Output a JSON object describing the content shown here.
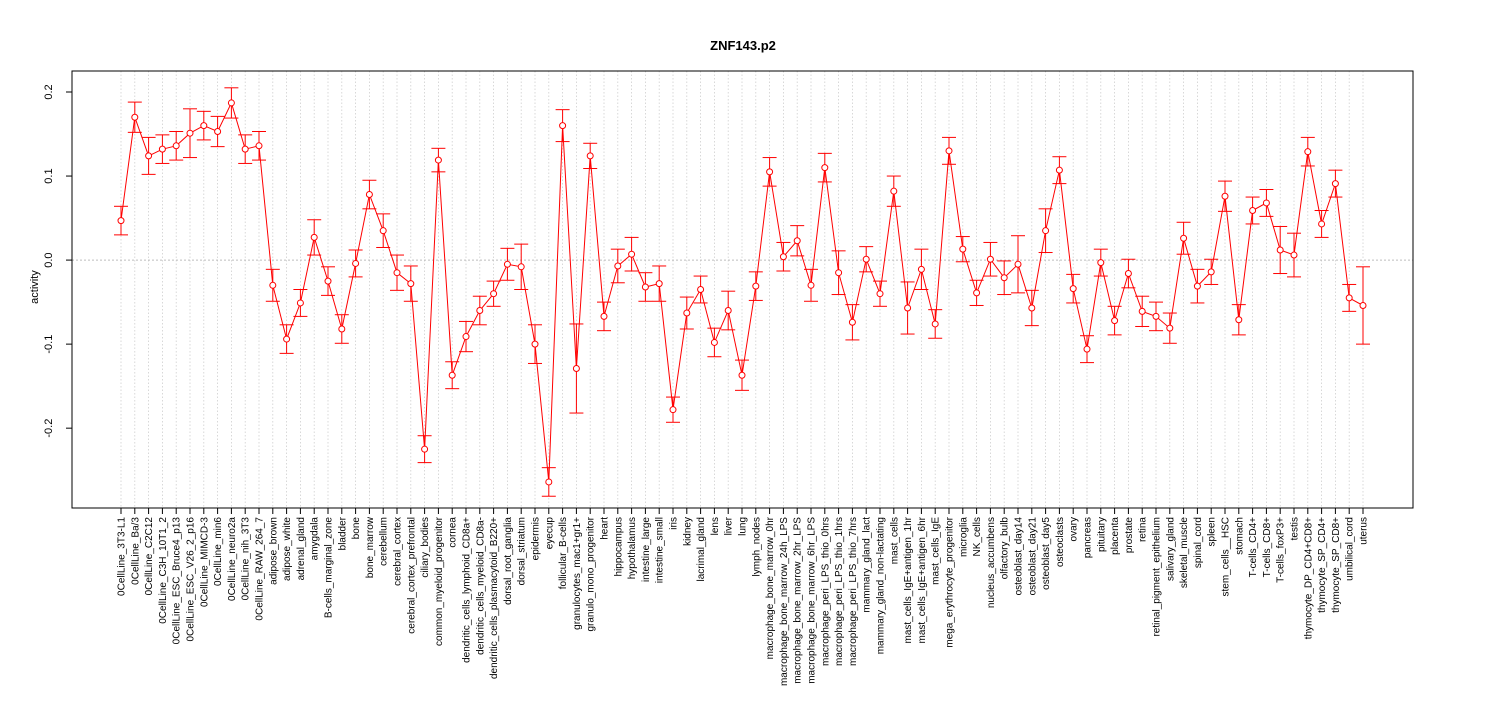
{
  "chart_data": {
    "type": "line",
    "title": "ZNF143.p2",
    "xlabel": "",
    "ylabel": "activity",
    "ylim": [
      -0.295,
      0.225
    ],
    "yticks": [
      -0.2,
      -0.1,
      0.0,
      0.1,
      0.2
    ],
    "ytick_labels": [
      "-0.2",
      "-0.1",
      "0.0",
      "0.1",
      "0.2"
    ],
    "grid": true,
    "reference_line": 0.0,
    "series": [
      {
        "name": "activity",
        "color": "#ff0000",
        "points": [
          {
            "label": "0CellLine_3T3-L1",
            "value": 0.047,
            "err": 0.017
          },
          {
            "label": "0CellLine_Ba/3",
            "value": 0.17,
            "err": 0.018
          },
          {
            "label": "0CellLine_C2C12",
            "value": 0.124,
            "err": 0.022
          },
          {
            "label": "0CellLine_C3H_10T1_2",
            "value": 0.132,
            "err": 0.017
          },
          {
            "label": "0CellLine_ESC_Bruce4_p13",
            "value": 0.136,
            "err": 0.017
          },
          {
            "label": "0CellLine_ESC_V26_2_p16",
            "value": 0.151,
            "err": 0.029
          },
          {
            "label": "0CellLine_MIMCD-3",
            "value": 0.16,
            "err": 0.017
          },
          {
            "label": "0CellLine_min6",
            "value": 0.153,
            "err": 0.018
          },
          {
            "label": "0CellLine_neuro2a",
            "value": 0.187,
            "err": 0.018
          },
          {
            "label": "0CellLine_nih_3T3",
            "value": 0.132,
            "err": 0.017
          },
          {
            "label": "0CellLine_RAW_264_7",
            "value": 0.136,
            "err": 0.017
          },
          {
            "label": "adipose_brown",
            "value": -0.03,
            "err": 0.019
          },
          {
            "label": "adipose_white",
            "value": -0.094,
            "err": 0.017
          },
          {
            "label": "adrenal_gland",
            "value": -0.051,
            "err": 0.016
          },
          {
            "label": "amygdala",
            "value": 0.027,
            "err": 0.021
          },
          {
            "label": "B-cells_marginal_zone",
            "value": -0.025,
            "err": 0.017
          },
          {
            "label": "bladder",
            "value": -0.082,
            "err": 0.017
          },
          {
            "label": "bone",
            "value": -0.004,
            "err": 0.016
          },
          {
            "label": "bone_marrow",
            "value": 0.078,
            "err": 0.017
          },
          {
            "label": "cerebellum",
            "value": 0.035,
            "err": 0.02
          },
          {
            "label": "cerebral_cortex",
            "value": -0.015,
            "err": 0.021
          },
          {
            "label": "cerebral_cortex_prefrontal",
            "value": -0.028,
            "err": 0.021
          },
          {
            "label": "ciliary_bodies",
            "value": -0.225,
            "err": 0.016
          },
          {
            "label": "common_myeloid_progenitor",
            "value": 0.119,
            "err": 0.014
          },
          {
            "label": "cornea",
            "value": -0.137,
            "err": 0.016
          },
          {
            "label": "dendritic_cells_lymphoid_CD8a+",
            "value": -0.091,
            "err": 0.018
          },
          {
            "label": "dendritic_cells_myeloid_CD8a-",
            "value": -0.06,
            "err": 0.017
          },
          {
            "label": "dendritic_cells_plasmacytoid_B220+",
            "value": -0.04,
            "err": 0.015
          },
          {
            "label": "dorsal_root_ganglia",
            "value": -0.005,
            "err": 0.019
          },
          {
            "label": "dorsal_striatum",
            "value": -0.008,
            "err": 0.027
          },
          {
            "label": "epidermis",
            "value": -0.1,
            "err": 0.023
          },
          {
            "label": "eyecup",
            "value": -0.264,
            "err": 0.017
          },
          {
            "label": "follicular_B-cells",
            "value": 0.16,
            "err": 0.019
          },
          {
            "label": "granulocytes_mac1+gr1+",
            "value": -0.129,
            "err": 0.053
          },
          {
            "label": "granulo_mono_progenitor",
            "value": 0.124,
            "err": 0.015
          },
          {
            "label": "heart",
            "value": -0.067,
            "err": 0.017
          },
          {
            "label": "hippocampus",
            "value": -0.007,
            "err": 0.02
          },
          {
            "label": "hypothalamus",
            "value": 0.007,
            "err": 0.02
          },
          {
            "label": "intestine_large",
            "value": -0.032,
            "err": 0.017
          },
          {
            "label": "intestine_small",
            "value": -0.028,
            "err": 0.021
          },
          {
            "label": "iris",
            "value": -0.178,
            "err": 0.015
          },
          {
            "label": "kidney",
            "value": -0.063,
            "err": 0.019
          },
          {
            "label": "lacrimal_gland",
            "value": -0.035,
            "err": 0.016
          },
          {
            "label": "lens",
            "value": -0.098,
            "err": 0.017
          },
          {
            "label": "liver",
            "value": -0.06,
            "err": 0.023
          },
          {
            "label": "lung",
            "value": -0.137,
            "err": 0.018
          },
          {
            "label": "lymph_nodes",
            "value": -0.031,
            "err": 0.017
          },
          {
            "label": "macrophage_bone_marrow_0hr",
            "value": 0.105,
            "err": 0.017
          },
          {
            "label": "macrophage_bone_marrow_24h_LPS",
            "value": 0.004,
            "err": 0.017
          },
          {
            "label": "macrophage_bone_marrow_2hr_LPS",
            "value": 0.023,
            "err": 0.018
          },
          {
            "label": "macrophage_bone_marrow_6hr_LPS",
            "value": -0.03,
            "err": 0.019
          },
          {
            "label": "macrophage_peri_LPS_thio_0hrs",
            "value": 0.11,
            "err": 0.017
          },
          {
            "label": "macrophage_peri_LPS_thio_1hrs",
            "value": -0.015,
            "err": 0.026
          },
          {
            "label": "macrophage_peri_LPS_thio_7hrs",
            "value": -0.074,
            "err": 0.021
          },
          {
            "label": "mammary_gland_lact",
            "value": 0.001,
            "err": 0.015
          },
          {
            "label": "mammary_gland_non-lactating",
            "value": -0.04,
            "err": 0.015
          },
          {
            "label": "mast_cells",
            "value": 0.082,
            "err": 0.018
          },
          {
            "label": "mast_cells_IgE+antigen_1hr",
            "value": -0.057,
            "err": 0.031
          },
          {
            "label": "mast_cells_IgE+antigen_6hr",
            "value": -0.011,
            "err": 0.024
          },
          {
            "label": "mast_cells_IgE",
            "value": -0.076,
            "err": 0.017
          },
          {
            "label": "mega_erythrocyte_progenitor",
            "value": 0.13,
            "err": 0.016
          },
          {
            "label": "microglia",
            "value": 0.013,
            "err": 0.015
          },
          {
            "label": "NK_cells",
            "value": -0.039,
            "err": 0.015
          },
          {
            "label": "nucleus_accumbens",
            "value": 0.001,
            "err": 0.02
          },
          {
            "label": "olfactory_bulb",
            "value": -0.021,
            "err": 0.02
          },
          {
            "label": "osteoblast_day14",
            "value": -0.005,
            "err": 0.034
          },
          {
            "label": "osteoblast_day21",
            "value": -0.057,
            "err": 0.021
          },
          {
            "label": "osteoblast_day5",
            "value": 0.035,
            "err": 0.026
          },
          {
            "label": "osteoclasts",
            "value": 0.107,
            "err": 0.016
          },
          {
            "label": "ovary",
            "value": -0.034,
            "err": 0.017
          },
          {
            "label": "pancreas",
            "value": -0.106,
            "err": 0.016
          },
          {
            "label": "pituitary",
            "value": -0.003,
            "err": 0.016
          },
          {
            "label": "placenta",
            "value": -0.072,
            "err": 0.017
          },
          {
            "label": "prostate",
            "value": -0.016,
            "err": 0.017
          },
          {
            "label": "retina",
            "value": -0.061,
            "err": 0.018
          },
          {
            "label": "retinal_pigment_epithelium",
            "value": -0.067,
            "err": 0.017
          },
          {
            "label": "salivary_gland",
            "value": -0.081,
            "err": 0.018
          },
          {
            "label": "skeletal_muscle",
            "value": 0.026,
            "err": 0.019
          },
          {
            "label": "spinal_cord",
            "value": -0.031,
            "err": 0.02
          },
          {
            "label": "spleen",
            "value": -0.014,
            "err": 0.015
          },
          {
            "label": "stem_cells__HSC",
            "value": 0.076,
            "err": 0.018
          },
          {
            "label": "stomach",
            "value": -0.071,
            "err": 0.018
          },
          {
            "label": "T-cells_CD4+",
            "value": 0.059,
            "err": 0.016
          },
          {
            "label": "T-cells_CD8+",
            "value": 0.068,
            "err": 0.016
          },
          {
            "label": "T-cells_foxP3+",
            "value": 0.012,
            "err": 0.028
          },
          {
            "label": "testis",
            "value": 0.006,
            "err": 0.026
          },
          {
            "label": "thymocyte_DP_CD4+CD8+",
            "value": 0.129,
            "err": 0.017
          },
          {
            "label": "thymocyte_SP_CD4+",
            "value": 0.043,
            "err": 0.016
          },
          {
            "label": "thymocyte_SP_CD8+",
            "value": 0.091,
            "err": 0.016
          },
          {
            "label": "umbilical_cord",
            "value": -0.045,
            "err": 0.016
          },
          {
            "label": "uterus",
            "value": -0.054,
            "err": 0.046
          }
        ]
      }
    ]
  }
}
